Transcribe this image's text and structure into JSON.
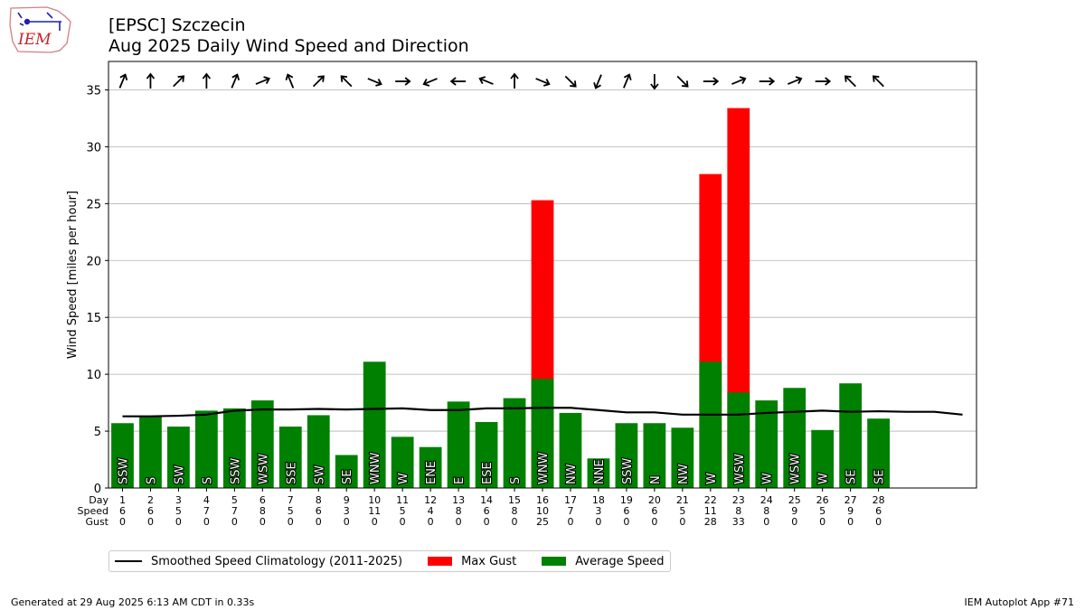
{
  "header": {
    "title_line1": "[EPSC] Szczecin",
    "title_line2": "Aug 2025 Daily Wind Speed and Direction",
    "logo_text": "IEM"
  },
  "footer": {
    "generated": "Generated at 29 Aug 2025 6:13 AM CDT in 0.33s",
    "app": "IEM Autoplot App #71"
  },
  "colors": {
    "gust": "#ff0000",
    "avg": "#008000",
    "climo": "#000000",
    "grid": "#b0b0b0"
  },
  "legend": [
    {
      "label": "Smoothed Speed Climatology (2011-2025)",
      "kind": "line",
      "color": "#000000"
    },
    {
      "label": "Max Gust",
      "kind": "box",
      "color": "#ff0000"
    },
    {
      "label": "Average Speed",
      "kind": "box",
      "color": "#008000"
    }
  ],
  "chart_data": {
    "type": "bar",
    "ylabel": "Wind Speed [miles per hour]",
    "ylim": [
      0,
      37.5
    ],
    "xlim": [
      0.5,
      31.5
    ],
    "yticks": [
      0,
      5,
      10,
      15,
      20,
      25,
      30,
      35
    ],
    "grid": "y",
    "row_labels": [
      "Day",
      "Speed",
      "Gust"
    ],
    "days": [
      1,
      2,
      3,
      4,
      5,
      6,
      7,
      8,
      9,
      10,
      11,
      12,
      13,
      14,
      15,
      16,
      17,
      18,
      19,
      20,
      21,
      22,
      23,
      24,
      25,
      26,
      27,
      28
    ],
    "speed_labels": [
      6,
      6,
      5,
      7,
      7,
      8,
      5,
      6,
      3,
      11,
      5,
      4,
      8,
      6,
      8,
      10,
      7,
      3,
      6,
      6,
      5,
      11,
      8,
      8,
      9,
      5,
      9,
      6
    ],
    "gust_labels": [
      0,
      0,
      0,
      0,
      0,
      0,
      0,
      0,
      0,
      0,
      0,
      0,
      0,
      0,
      0,
      25,
      0,
      0,
      0,
      0,
      0,
      28,
      33,
      0,
      0,
      0,
      0,
      0
    ],
    "series": [
      {
        "name": "Average Speed",
        "values": [
          5.7,
          6.3,
          5.4,
          6.8,
          7.0,
          7.7,
          5.4,
          6.4,
          2.9,
          11.1,
          4.5,
          3.6,
          7.6,
          5.8,
          7.9,
          9.6,
          6.6,
          2.6,
          5.7,
          5.7,
          5.3,
          11.1,
          8.4,
          7.7,
          8.8,
          5.1,
          9.2,
          6.1
        ]
      },
      {
        "name": "Max Gust",
        "values": [
          0,
          0,
          0,
          0,
          0,
          0,
          0,
          0,
          0,
          0,
          0,
          0,
          0,
          0,
          0,
          25.3,
          0,
          0,
          0,
          0,
          0,
          27.6,
          33.4,
          0,
          0,
          0,
          0,
          0
        ]
      }
    ],
    "directions": [
      "SSW",
      "S",
      "SW",
      "S",
      "SSW",
      "WSW",
      "SSE",
      "SW",
      "SE",
      "WNW",
      "W",
      "ENE",
      "E",
      "ESE",
      "S",
      "WNW",
      "NW",
      "NNE",
      "SSW",
      "N",
      "NW",
      "W",
      "WSW",
      "W",
      "WSW",
      "W",
      "SE",
      "SE"
    ],
    "direction_degrees": [
      202.5,
      180,
      225,
      180,
      202.5,
      247.5,
      157.5,
      225,
      135,
      292.5,
      270,
      67.5,
      90,
      112.5,
      180,
      292.5,
      315,
      22.5,
      202.5,
      0,
      315,
      270,
      247.5,
      270,
      247.5,
      270,
      135,
      135
    ],
    "climatology": {
      "name": "Smoothed Speed Climatology (2011-2025)",
      "x": [
        1,
        2,
        3,
        4,
        5,
        6,
        7,
        8,
        9,
        10,
        11,
        12,
        13,
        14,
        15,
        16,
        17,
        18,
        19,
        20,
        21,
        22,
        23,
        24,
        25,
        26,
        27,
        28,
        29,
        30,
        31
      ],
      "y": [
        6.3,
        6.3,
        6.35,
        6.45,
        6.8,
        6.9,
        6.9,
        6.95,
        6.9,
        6.95,
        7.0,
        6.85,
        6.85,
        7.0,
        7.0,
        7.05,
        7.05,
        6.85,
        6.65,
        6.65,
        6.45,
        6.45,
        6.45,
        6.6,
        6.7,
        6.8,
        6.7,
        6.75,
        6.7,
        6.7,
        6.45
      ]
    }
  }
}
